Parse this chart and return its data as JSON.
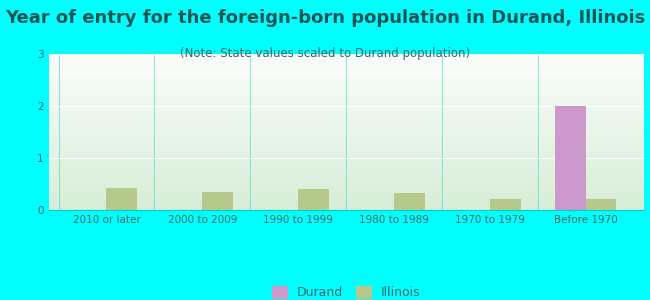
{
  "title": "Year of entry for the foreign-born population in Durand, Illinois",
  "subtitle": "(Note: State values scaled to Durand population)",
  "categories": [
    "2010 or later",
    "2000 to 2009",
    "1990 to 1999",
    "1980 to 1989",
    "1970 to 1979",
    "Before 1970"
  ],
  "durand_values": [
    0,
    0,
    0,
    0,
    0,
    2
  ],
  "illinois_values": [
    0.42,
    0.35,
    0.4,
    0.32,
    0.22,
    0.21
  ],
  "durand_color": "#cc99cc",
  "illinois_color": "#b5c98a",
  "background_color": "#00ffff",
  "ylim": [
    0,
    3
  ],
  "yticks": [
    0,
    1,
    2,
    3
  ],
  "bar_width": 0.32,
  "title_fontsize": 13,
  "subtitle_fontsize": 8.5,
  "tick_fontsize": 7.5,
  "legend_fontsize": 9
}
